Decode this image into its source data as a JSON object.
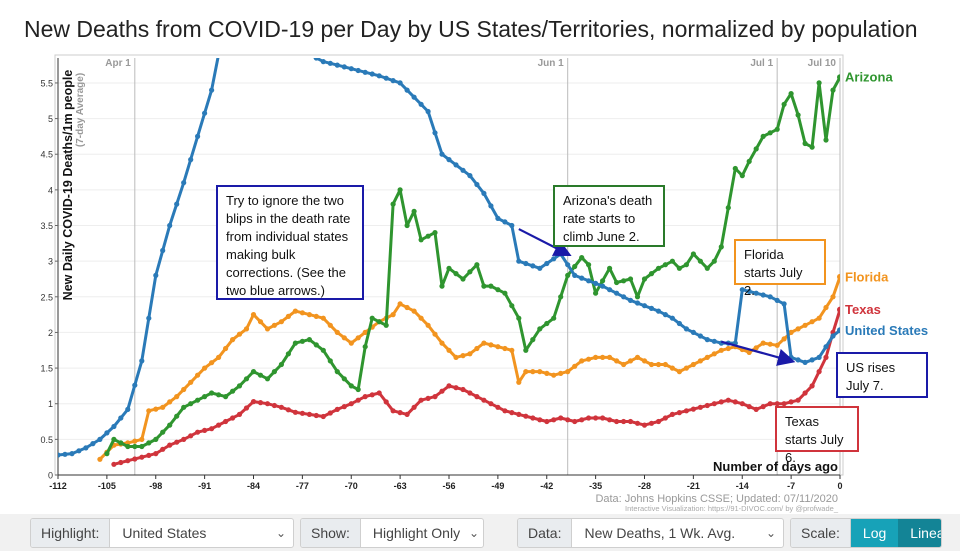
{
  "title": "New Deaths from COVID-19 per Day by US States/Territories, normalized by population",
  "chart_data": {
    "type": "line",
    "ylabel": "New Daily COVID-19 Deaths/1m people",
    "ylabel_sub": "(7-day Average)",
    "xlabel": "Number of days ago",
    "xlim": [
      -112,
      0
    ],
    "ylim": [
      0,
      5.85
    ],
    "xticks": [
      -112,
      -105,
      -98,
      -91,
      -84,
      -77,
      -70,
      -63,
      -56,
      -49,
      -42,
      -35,
      -28,
      -21,
      -14,
      -7,
      0
    ],
    "yticks": [
      0,
      0.5,
      1,
      1.5,
      2,
      2.5,
      3,
      3.5,
      4,
      4.5,
      5,
      5.5
    ],
    "ytick_labels": [
      "0",
      "0.5",
      "1",
      "1.5",
      "2",
      "2.5",
      "3",
      "3.5",
      "4",
      "4.5",
      "5",
      "5.5"
    ],
    "date_markers": [
      {
        "label": "Apr 1",
        "x": -101
      },
      {
        "label": "Jun 1",
        "x": -39
      },
      {
        "label": "Jul 1",
        "x": -9
      },
      {
        "label": "Jul 10",
        "x": 0
      }
    ],
    "source": "Data: Johns Hopkins CSSE; Updated: 07/11/2020",
    "source_sub": "Interactive Visualization: https://91-DIVOC.com/ by @profwade_",
    "series": [
      {
        "name": "United States",
        "color": "#2a7ab8",
        "label_color": "#2a7ab8",
        "points": [
          [
            -112,
            0.28
          ],
          [
            -110,
            0.3
          ],
          [
            -108,
            0.38
          ],
          [
            -106,
            0.5
          ],
          [
            -104,
            0.68
          ],
          [
            -102,
            0.92
          ],
          [
            -100,
            1.6
          ],
          [
            -98,
            2.8
          ],
          [
            -96,
            3.5
          ],
          [
            -94,
            4.1
          ],
          [
            -92,
            4.75
          ],
          [
            -90,
            5.4
          ],
          [
            -89,
            5.9
          ],
          [
            -76,
            5.9
          ],
          [
            -74,
            5.8
          ],
          [
            -72,
            5.75
          ],
          [
            -70,
            5.7
          ],
          [
            -66,
            5.6
          ],
          [
            -63,
            5.5
          ],
          [
            -61,
            5.3
          ],
          [
            -59,
            5.1
          ],
          [
            -57,
            4.5
          ],
          [
            -55,
            4.35
          ],
          [
            -53,
            4.2
          ],
          [
            -51,
            3.95
          ],
          [
            -49,
            3.6
          ],
          [
            -47,
            3.5
          ],
          [
            -46,
            3.0
          ],
          [
            -43,
            2.9
          ],
          [
            -40,
            3.1
          ],
          [
            -38,
            2.8
          ],
          [
            -34,
            2.65
          ],
          [
            -30,
            2.45
          ],
          [
            -26,
            2.3
          ],
          [
            -24,
            2.2
          ],
          [
            -22,
            2.05
          ],
          [
            -19,
            1.9
          ],
          [
            -17,
            1.85
          ],
          [
            -15,
            1.85
          ],
          [
            -14,
            2.6
          ],
          [
            -10,
            2.5
          ],
          [
            -8,
            2.4
          ],
          [
            -7,
            1.65
          ],
          [
            -5,
            1.58
          ],
          [
            -3,
            1.65
          ],
          [
            -1,
            1.95
          ],
          [
            0,
            2.03
          ]
        ]
      },
      {
        "name": "Arizona",
        "color": "#2f952f",
        "label_color": "#2f952f",
        "points": [
          [
            -105,
            0.3
          ],
          [
            -104,
            0.5
          ],
          [
            -102,
            0.4
          ],
          [
            -100,
            0.4
          ],
          [
            -98,
            0.5
          ],
          [
            -96,
            0.7
          ],
          [
            -94,
            0.95
          ],
          [
            -92,
            1.05
          ],
          [
            -90,
            1.15
          ],
          [
            -88,
            1.1
          ],
          [
            -86,
            1.25
          ],
          [
            -84,
            1.45
          ],
          [
            -82,
            1.35
          ],
          [
            -80,
            1.55
          ],
          [
            -78,
            1.85
          ],
          [
            -76,
            1.9
          ],
          [
            -74,
            1.75
          ],
          [
            -72,
            1.45
          ],
          [
            -70,
            1.25
          ],
          [
            -69,
            1.2
          ],
          [
            -68,
            1.8
          ],
          [
            -67,
            2.2
          ],
          [
            -65,
            2.1
          ],
          [
            -64,
            3.8
          ],
          [
            -63,
            4.0
          ],
          [
            -62,
            3.5
          ],
          [
            -61,
            3.7
          ],
          [
            -60,
            3.3
          ],
          [
            -58,
            3.4
          ],
          [
            -57,
            2.65
          ],
          [
            -56,
            2.9
          ],
          [
            -54,
            2.75
          ],
          [
            -52,
            2.95
          ],
          [
            -51,
            2.65
          ],
          [
            -50,
            2.65
          ],
          [
            -48,
            2.55
          ],
          [
            -46,
            2.2
          ],
          [
            -45,
            1.75
          ],
          [
            -43,
            2.05
          ],
          [
            -41,
            2.2
          ],
          [
            -39,
            2.8
          ],
          [
            -37,
            3.05
          ],
          [
            -36,
            2.95
          ],
          [
            -35,
            2.55
          ],
          [
            -33,
            2.9
          ],
          [
            -32,
            2.7
          ],
          [
            -30,
            2.75
          ],
          [
            -29,
            2.5
          ],
          [
            -28,
            2.75
          ],
          [
            -26,
            2.9
          ],
          [
            -24,
            3.0
          ],
          [
            -23,
            2.9
          ],
          [
            -22,
            2.95
          ],
          [
            -21,
            3.1
          ],
          [
            -19,
            2.9
          ],
          [
            -18,
            3.0
          ],
          [
            -17,
            3.2
          ],
          [
            -15,
            4.3
          ],
          [
            -14,
            4.2
          ],
          [
            -13,
            4.4
          ],
          [
            -11,
            4.75
          ],
          [
            -9,
            4.85
          ],
          [
            -8,
            5.2
          ],
          [
            -7,
            5.35
          ],
          [
            -6,
            5.05
          ],
          [
            -5,
            4.65
          ],
          [
            -4,
            4.6
          ],
          [
            -3,
            5.5
          ],
          [
            -2,
            4.7
          ],
          [
            -1,
            5.4
          ],
          [
            0,
            5.58
          ]
        ]
      },
      {
        "name": "Florida",
        "color": "#f2941f",
        "label_color": "#f2941f",
        "points": [
          [
            -106,
            0.22
          ],
          [
            -104,
            0.42
          ],
          [
            -102,
            0.45
          ],
          [
            -100,
            0.5
          ],
          [
            -99,
            0.9
          ],
          [
            -97,
            0.95
          ],
          [
            -95,
            1.1
          ],
          [
            -93,
            1.3
          ],
          [
            -91,
            1.5
          ],
          [
            -89,
            1.65
          ],
          [
            -87,
            1.9
          ],
          [
            -85,
            2.05
          ],
          [
            -84,
            2.25
          ],
          [
            -82,
            2.05
          ],
          [
            -80,
            2.15
          ],
          [
            -78,
            2.3
          ],
          [
            -76,
            2.25
          ],
          [
            -74,
            2.2
          ],
          [
            -72,
            2.0
          ],
          [
            -70,
            1.85
          ],
          [
            -68,
            2.0
          ],
          [
            -66,
            2.15
          ],
          [
            -64,
            2.25
          ],
          [
            -63,
            2.4
          ],
          [
            -61,
            2.3
          ],
          [
            -59,
            2.1
          ],
          [
            -57,
            1.85
          ],
          [
            -55,
            1.65
          ],
          [
            -53,
            1.7
          ],
          [
            -51,
            1.85
          ],
          [
            -49,
            1.8
          ],
          [
            -47,
            1.75
          ],
          [
            -46,
            1.3
          ],
          [
            -45,
            1.45
          ],
          [
            -43,
            1.45
          ],
          [
            -41,
            1.4
          ],
          [
            -39,
            1.45
          ],
          [
            -37,
            1.6
          ],
          [
            -35,
            1.65
          ],
          [
            -33,
            1.65
          ],
          [
            -31,
            1.55
          ],
          [
            -29,
            1.65
          ],
          [
            -27,
            1.55
          ],
          [
            -25,
            1.55
          ],
          [
            -23,
            1.45
          ],
          [
            -21,
            1.55
          ],
          [
            -19,
            1.65
          ],
          [
            -17,
            1.75
          ],
          [
            -15,
            1.8
          ],
          [
            -13,
            1.72
          ],
          [
            -11,
            1.85
          ],
          [
            -9,
            1.82
          ],
          [
            -7,
            2.0
          ],
          [
            -5,
            2.1
          ],
          [
            -3,
            2.2
          ],
          [
            -1,
            2.5
          ],
          [
            0,
            2.78
          ]
        ]
      },
      {
        "name": "Texas",
        "color": "#d0343c",
        "label_color": "#d0343c",
        "points": [
          [
            -104,
            0.15
          ],
          [
            -102,
            0.2
          ],
          [
            -100,
            0.25
          ],
          [
            -98,
            0.3
          ],
          [
            -96,
            0.42
          ],
          [
            -94,
            0.5
          ],
          [
            -92,
            0.6
          ],
          [
            -90,
            0.65
          ],
          [
            -88,
            0.75
          ],
          [
            -86,
            0.85
          ],
          [
            -84,
            1.03
          ],
          [
            -82,
            1.0
          ],
          [
            -80,
            0.95
          ],
          [
            -78,
            0.88
          ],
          [
            -76,
            0.85
          ],
          [
            -74,
            0.82
          ],
          [
            -72,
            0.92
          ],
          [
            -70,
            1.0
          ],
          [
            -68,
            1.1
          ],
          [
            -66,
            1.15
          ],
          [
            -64,
            0.9
          ],
          [
            -62,
            0.85
          ],
          [
            -60,
            1.05
          ],
          [
            -58,
            1.1
          ],
          [
            -56,
            1.25
          ],
          [
            -54,
            1.2
          ],
          [
            -52,
            1.1
          ],
          [
            -50,
            1.0
          ],
          [
            -48,
            0.9
          ],
          [
            -46,
            0.85
          ],
          [
            -44,
            0.8
          ],
          [
            -42,
            0.75
          ],
          [
            -40,
            0.8
          ],
          [
            -38,
            0.75
          ],
          [
            -36,
            0.8
          ],
          [
            -34,
            0.8
          ],
          [
            -32,
            0.75
          ],
          [
            -30,
            0.75
          ],
          [
            -28,
            0.7
          ],
          [
            -26,
            0.75
          ],
          [
            -24,
            0.85
          ],
          [
            -22,
            0.9
          ],
          [
            -20,
            0.95
          ],
          [
            -18,
            1.0
          ],
          [
            -16,
            1.05
          ],
          [
            -14,
            1.0
          ],
          [
            -12,
            0.92
          ],
          [
            -10,
            1.0
          ],
          [
            -8,
            1.0
          ],
          [
            -6,
            1.05
          ],
          [
            -4,
            1.25
          ],
          [
            -2,
            1.65
          ],
          [
            -1,
            2.0
          ],
          [
            0,
            2.32
          ]
        ]
      }
    ],
    "arrows": [
      {
        "from": [
          -46,
          3.45
        ],
        "to": [
          -39,
          3.1
        ],
        "color": "#1a1aa8"
      },
      {
        "from": [
          -17,
          1.87
        ],
        "to": [
          -7,
          1.6
        ],
        "color": "#1a1aa8"
      }
    ]
  },
  "annotations": {
    "blips": "Try to ignore the two blips in the death rate from individual states making bulk corrections.  (See the two blue arrows.)",
    "arizona": "Arizona's death rate starts to climb June 2.",
    "florida": "Florida starts July 2.",
    "us": "US rises July 7.",
    "texas": "Texas starts July 6."
  },
  "controls": {
    "highlight_label": "Highlight:",
    "highlight_value": "United States",
    "show_label": "Show:",
    "show_value": "Highlight Only",
    "data_label": "Data:",
    "data_value": "New Deaths, 1 Wk. Avg.",
    "scale_label": "Scale:",
    "scale_log": "Log",
    "scale_linear": "Linear"
  },
  "colors": {
    "arizona": "#2f952f",
    "florida": "#f2941f",
    "texas": "#d0343c",
    "us": "#2a7ab8",
    "annotation_blue": "#1a1aa8",
    "teal_button": "#17a2b8",
    "dark_teal_button": "#138496"
  }
}
